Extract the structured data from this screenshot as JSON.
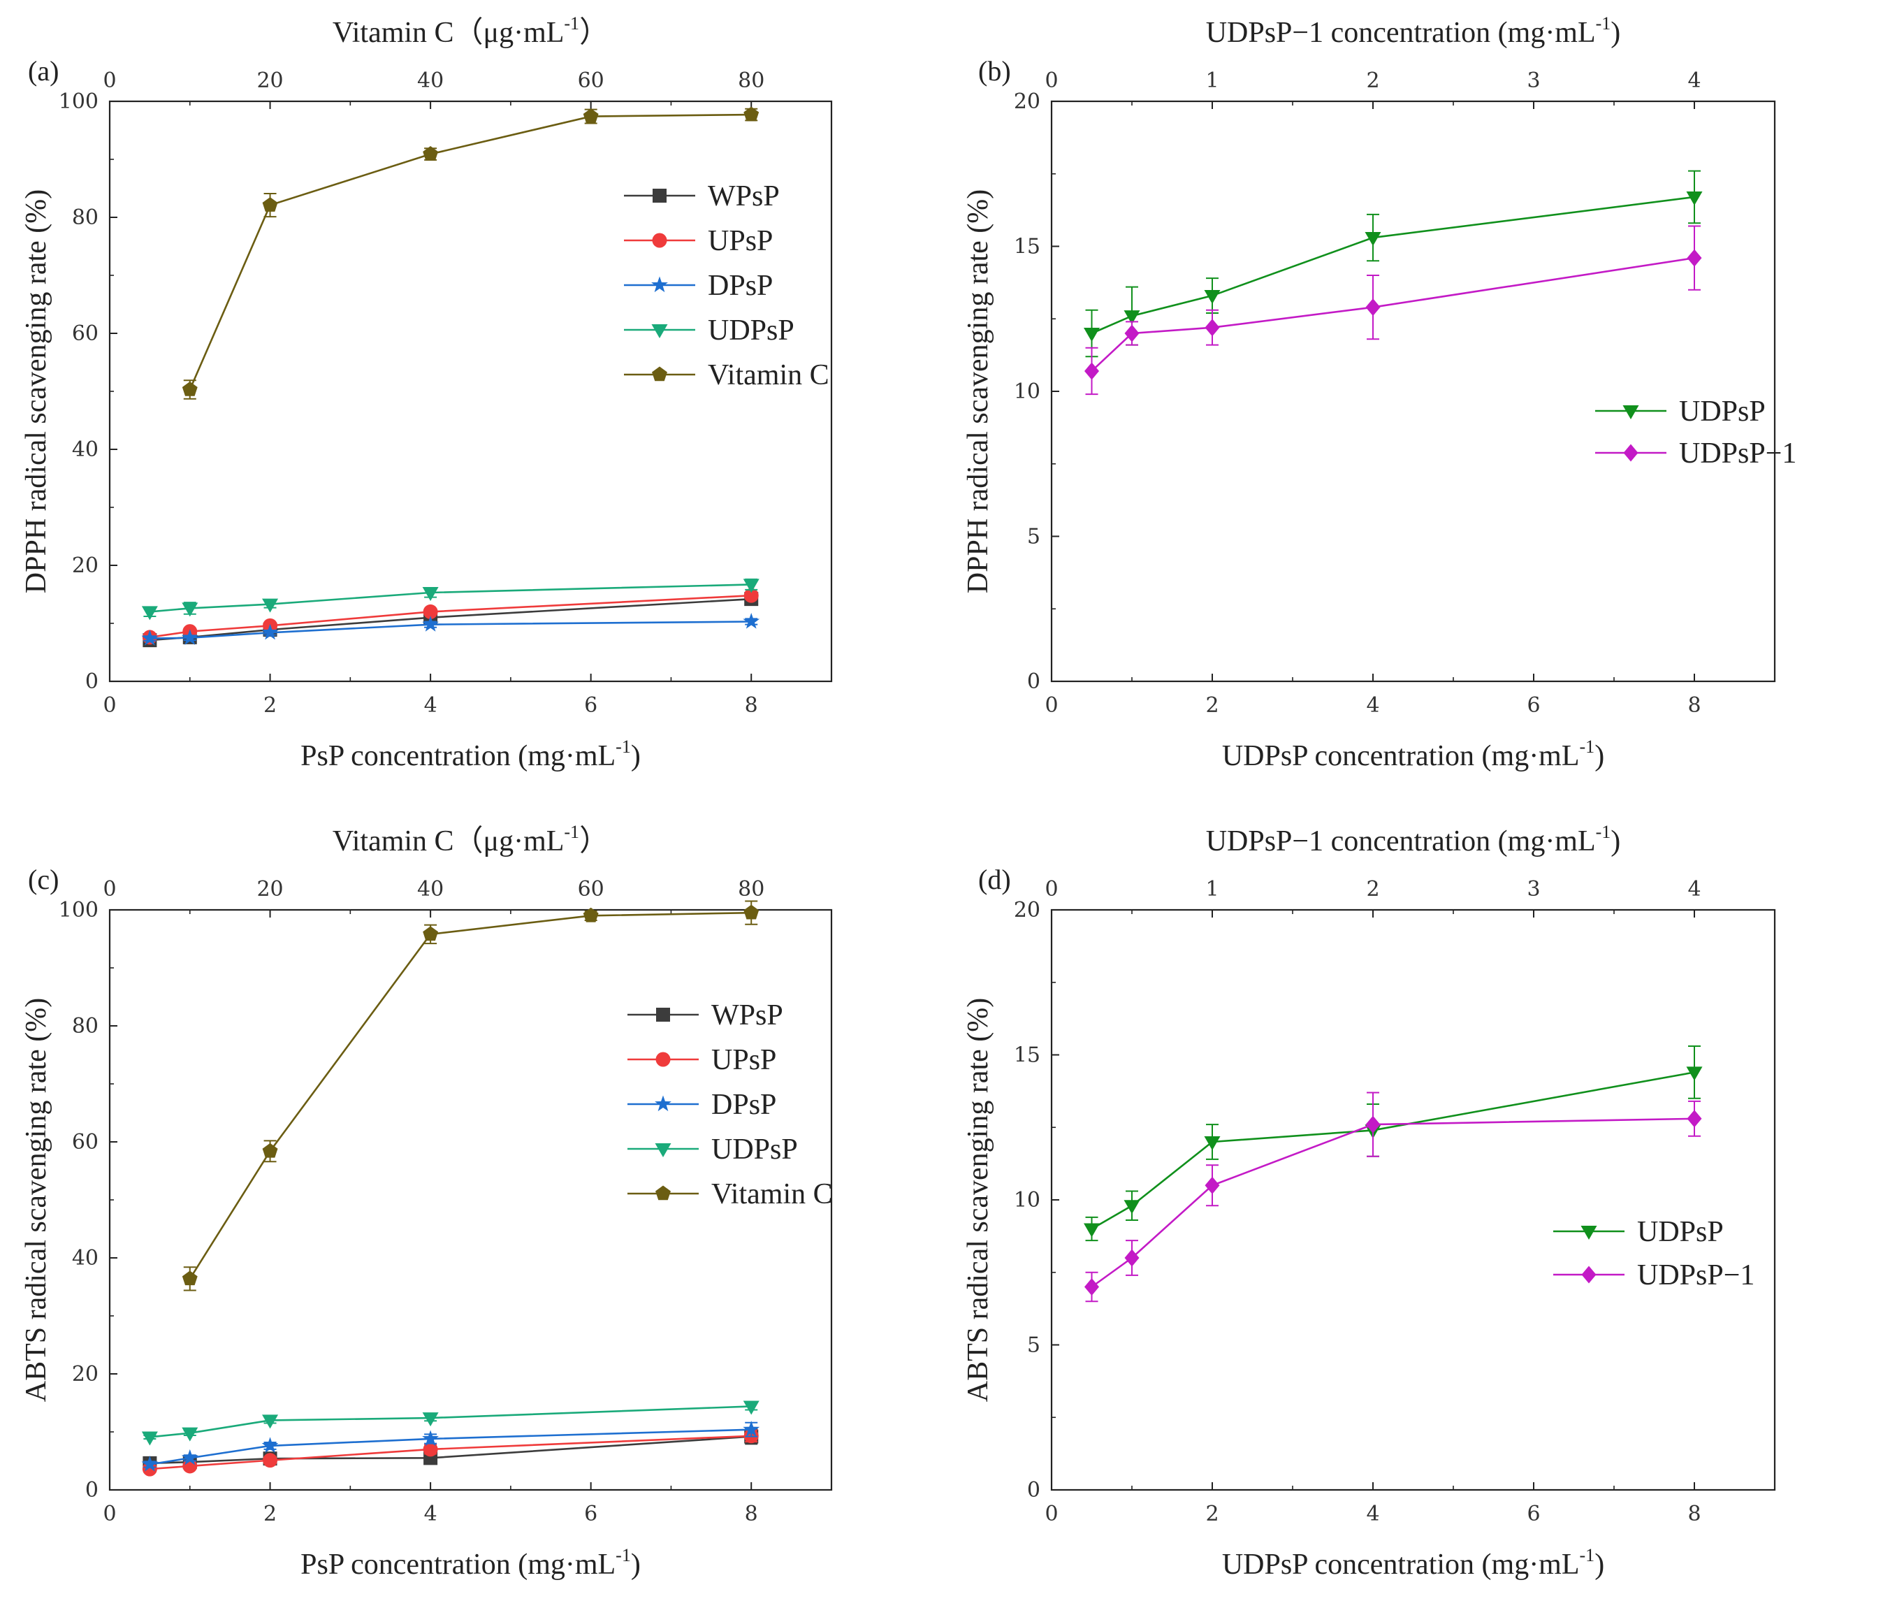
{
  "chart_data": [
    {
      "panel": "(a)",
      "type": "line",
      "xlabel": "PsP concentration (mg·mL",
      "xlabel_sup": "-1",
      "x2label": "Vitamin C（μg·mL",
      "x2label_sup": "-1",
      "x2label_end": "）",
      "ylabel": "DPPH radical scavenging rate (%)",
      "xlim": [
        0,
        9
      ],
      "x_ticks": [
        "0",
        "2",
        "4",
        "6",
        "8"
      ],
      "x2lim": [
        0,
        90
      ],
      "x2_ticks": [
        "0",
        "20",
        "40",
        "60",
        "80"
      ],
      "ylim": [
        0,
        100
      ],
      "y_ticks": [
        "0",
        "20",
        "40",
        "60",
        "80",
        "100"
      ],
      "legend_position": "right",
      "series": [
        {
          "name": "WPsP",
          "color": "#3c3c3c",
          "marker": "square",
          "axis": "bottom",
          "x": [
            0.5,
            1,
            2,
            4,
            8
          ],
          "values": [
            7.1,
            7.6,
            8.9,
            11.0,
            14.2
          ],
          "errors": [
            0.4,
            0.4,
            0.5,
            0.5,
            0.6
          ]
        },
        {
          "name": "UPsP",
          "color": "#ef3b3b",
          "marker": "circle",
          "axis": "bottom",
          "x": [
            0.5,
            1,
            2,
            4,
            8
          ],
          "values": [
            7.6,
            8.6,
            9.6,
            12.0,
            14.8
          ],
          "errors": [
            0.4,
            0.4,
            0.5,
            0.5,
            0.6
          ]
        },
        {
          "name": "DPsP",
          "color": "#1e6fd0",
          "marker": "star",
          "axis": "bottom",
          "x": [
            0.5,
            1,
            2,
            4,
            8
          ],
          "values": [
            7.4,
            7.5,
            8.4,
            9.8,
            10.3
          ],
          "errors": [
            0.4,
            0.4,
            0.4,
            0.5,
            0.5
          ]
        },
        {
          "name": "UDPsP",
          "color": "#1aaa7a",
          "marker": "triangle-down",
          "axis": "bottom",
          "x": [
            0.5,
            1,
            2,
            4,
            8
          ],
          "values": [
            12.0,
            12.6,
            13.3,
            15.3,
            16.7
          ],
          "errors": [
            0.8,
            1.0,
            0.6,
            0.8,
            0.9
          ]
        },
        {
          "name": "Vitamin C",
          "color": "#6b5d12",
          "marker": "pentagon",
          "axis": "top",
          "x": [
            10,
            20,
            40,
            60,
            80
          ],
          "values": [
            50.3,
            82.1,
            90.9,
            97.4,
            97.7
          ],
          "errors": [
            1.6,
            2.0,
            1.0,
            1.2,
            1.0
          ]
        }
      ]
    },
    {
      "panel": "(b)",
      "type": "line",
      "xlabel": "UDPsP concentration (mg·mL",
      "xlabel_sup": "-1",
      "x2label": "UDPsP−1 concentration (mg·mL",
      "x2label_sup": "-1",
      "x2label_end": ")",
      "ylabel": "DPPH radical scavenging rate (%)",
      "xlim": [
        0,
        9
      ],
      "x_ticks": [
        "0",
        "2",
        "4",
        "6",
        "8"
      ],
      "x2lim": [
        0,
        4.5
      ],
      "x2_ticks": [
        "0",
        "1",
        "2",
        "3",
        "4"
      ],
      "ylim": [
        0,
        20
      ],
      "y_ticks": [
        "0",
        "5",
        "10",
        "15",
        "20"
      ],
      "legend_position": "right",
      "series": [
        {
          "name": "UDPsP",
          "color": "#10901c",
          "marker": "triangle-down",
          "axis": "bottom",
          "x": [
            0.5,
            1,
            2,
            4,
            8
          ],
          "values": [
            12.0,
            12.6,
            13.3,
            15.3,
            16.7
          ],
          "errors": [
            0.8,
            1.0,
            0.6,
            0.8,
            0.9
          ]
        },
        {
          "name": "UDPsP−1",
          "color": "#c31ac6",
          "marker": "diamond",
          "axis": "top",
          "x": [
            0.25,
            0.5,
            1,
            2,
            4
          ],
          "values": [
            10.7,
            12.0,
            12.2,
            12.9,
            14.6
          ],
          "errors": [
            0.8,
            0.4,
            0.6,
            1.1,
            1.1
          ]
        }
      ]
    },
    {
      "panel": "(c)",
      "type": "line",
      "xlabel": "PsP concentration (mg·mL",
      "xlabel_sup": "-1",
      "x2label": "Vitamin C（μg·mL",
      "x2label_sup": "-1",
      "x2label_end": "）",
      "ylabel": "ABTS radical scavenging rate (%)",
      "xlim": [
        0,
        9
      ],
      "x_ticks": [
        "0",
        "2",
        "4",
        "6",
        "8"
      ],
      "x2lim": [
        0,
        90
      ],
      "x2_ticks": [
        "0",
        "20",
        "40",
        "60",
        "80"
      ],
      "ylim": [
        0,
        100
      ],
      "y_ticks": [
        "0",
        "20",
        "40",
        "60",
        "80",
        "100"
      ],
      "legend_position": "right",
      "series": [
        {
          "name": "WPsP",
          "color": "#3c3c3c",
          "marker": "square",
          "axis": "bottom",
          "x": [
            0.5,
            1,
            2,
            4,
            8
          ],
          "values": [
            4.6,
            4.8,
            5.4,
            5.5,
            9.2
          ],
          "errors": [
            0.5,
            0.5,
            0.6,
            0.8,
            1.3
          ]
        },
        {
          "name": "UPsP",
          "color": "#ef3b3b",
          "marker": "circle",
          "axis": "bottom",
          "x": [
            0.5,
            1,
            2,
            4,
            8
          ],
          "values": [
            3.6,
            4.1,
            5.1,
            7.0,
            9.3
          ],
          "errors": [
            0.5,
            0.5,
            0.6,
            0.8,
            1.0
          ]
        },
        {
          "name": "DPsP",
          "color": "#1e6fd0",
          "marker": "star",
          "axis": "bottom",
          "x": [
            0.5,
            1,
            2,
            4,
            8
          ],
          "values": [
            4.4,
            5.5,
            7.6,
            8.8,
            10.4
          ],
          "errors": [
            0.5,
            0.5,
            0.6,
            0.8,
            1.2
          ]
        },
        {
          "name": "UDPsP",
          "color": "#1aaa7a",
          "marker": "triangle-down",
          "axis": "bottom",
          "x": [
            0.5,
            1,
            2,
            4,
            8
          ],
          "values": [
            9.1,
            9.8,
            12.0,
            12.4,
            14.4
          ],
          "errors": [
            0.3,
            0.4,
            0.5,
            0.5,
            0.6
          ]
        },
        {
          "name": "Vitamin C",
          "color": "#6b5d12",
          "marker": "pentagon",
          "axis": "top",
          "x": [
            10,
            20,
            40,
            60,
            80
          ],
          "values": [
            36.4,
            58.4,
            95.8,
            99.0,
            99.5
          ],
          "errors": [
            2.0,
            1.8,
            1.6,
            0.8,
            2.0
          ]
        }
      ]
    },
    {
      "panel": "(d)",
      "type": "line",
      "xlabel": "UDPsP concentration (mg·mL",
      "xlabel_sup": "-1",
      "x2label": "UDPsP−1 concentration (mg·mL",
      "x2label_sup": "-1",
      "x2label_end": ")",
      "ylabel": "ABTS radical scavenging rate (%)",
      "xlim": [
        0,
        9
      ],
      "x_ticks": [
        "0",
        "2",
        "4",
        "6",
        "8"
      ],
      "x2lim": [
        0,
        4.5
      ],
      "x2_ticks": [
        "0",
        "1",
        "2",
        "3",
        "4"
      ],
      "ylim": [
        0,
        20
      ],
      "y_ticks": [
        "0",
        "5",
        "10",
        "15",
        "20"
      ],
      "legend_position": "right",
      "series": [
        {
          "name": "UDPsP",
          "color": "#10901c",
          "marker": "triangle-down",
          "axis": "bottom",
          "x": [
            0.5,
            1,
            2,
            4,
            8
          ],
          "values": [
            9.0,
            9.8,
            12.0,
            12.4,
            14.4
          ],
          "errors": [
            0.4,
            0.5,
            0.6,
            0.9,
            0.9
          ]
        },
        {
          "name": "UDPsP−1",
          "color": "#c31ac6",
          "marker": "diamond",
          "axis": "top",
          "x": [
            0.25,
            0.5,
            1,
            2,
            4
          ],
          "values": [
            7.0,
            8.0,
            10.5,
            12.6,
            12.8
          ],
          "errors": [
            0.5,
            0.6,
            0.7,
            1.1,
            0.6
          ]
        }
      ]
    }
  ]
}
